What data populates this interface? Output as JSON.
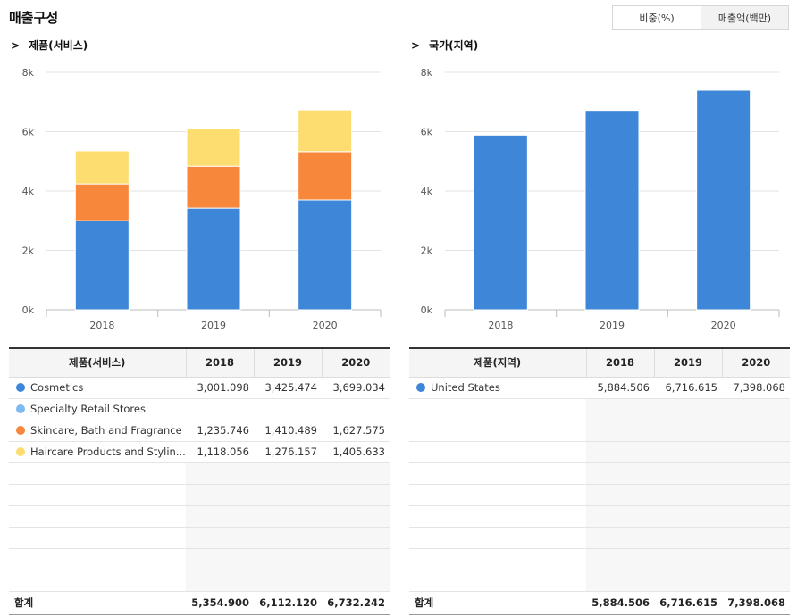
{
  "header": {
    "title": "매출구성",
    "toggle": [
      {
        "label": "비중(%)",
        "active": false
      },
      {
        "label": "매출액(백만)",
        "active": true
      }
    ]
  },
  "product": {
    "section_title": "제품(서비스)",
    "table_header": "제품(서비스)",
    "total_label": "합계",
    "years": [
      "2018",
      "2019",
      "2020"
    ],
    "rows": [
      {
        "name": "Cosmetics",
        "color": "#3e86d8",
        "values": [
          "3,001.098",
          "3,425.474",
          "3,699.034"
        ]
      },
      {
        "name": "Specialty Retail Stores",
        "color": "#7cbbf0",
        "values": [
          "",
          "",
          ""
        ]
      },
      {
        "name": "Skincare, Bath and Fragrance",
        "color": "#f7873b",
        "values": [
          "1,235.746",
          "1,410.489",
          "1,627.575"
        ]
      },
      {
        "name": "Haircare Products and Stylin...",
        "color": "#fddd6f",
        "values": [
          "1,118.056",
          "1,276.157",
          "1,405.633"
        ]
      }
    ],
    "totals": [
      "5,354.900",
      "6,112.120",
      "6,732.242"
    ]
  },
  "country": {
    "section_title": "국가(지역)",
    "table_header": "제품(지역)",
    "total_label": "합계",
    "years": [
      "2018",
      "2019",
      "2020"
    ],
    "rows": [
      {
        "name": "United States",
        "color": "#3e86d8",
        "values": [
          "5,884.506",
          "6,716.615",
          "7,398.068"
        ]
      }
    ],
    "totals": [
      "5,884.506",
      "6,716.615",
      "7,398.068"
    ]
  },
  "chart_data": [
    {
      "type": "bar",
      "stacked": true,
      "categories": [
        "2018",
        "2019",
        "2020"
      ],
      "y_ticks": [
        "0k",
        "2k",
        "4k",
        "6k",
        "8k"
      ],
      "ylim": [
        0,
        8000
      ],
      "grid": true,
      "series": [
        {
          "name": "Cosmetics",
          "color": "#3e86d8",
          "values": [
            3001.098,
            3425.474,
            3699.034
          ]
        },
        {
          "name": "Specialty Retail Stores",
          "color": "#7cbbf0",
          "values": [
            0,
            0,
            0
          ]
        },
        {
          "name": "Skincare, Bath and Fragrance",
          "color": "#f7873b",
          "values": [
            1235.746,
            1410.489,
            1627.575
          ]
        },
        {
          "name": "Haircare Products and Stylin...",
          "color": "#fddd6f",
          "values": [
            1118.056,
            1276.157,
            1405.633
          ]
        }
      ]
    },
    {
      "type": "bar",
      "stacked": false,
      "categories": [
        "2018",
        "2019",
        "2020"
      ],
      "y_ticks": [
        "0k",
        "2k",
        "4k",
        "6k",
        "8k"
      ],
      "ylim": [
        0,
        8000
      ],
      "grid": true,
      "series": [
        {
          "name": "United States",
          "color": "#3e86d8",
          "values": [
            5884.506,
            6716.615,
            7398.068
          ]
        }
      ]
    }
  ]
}
